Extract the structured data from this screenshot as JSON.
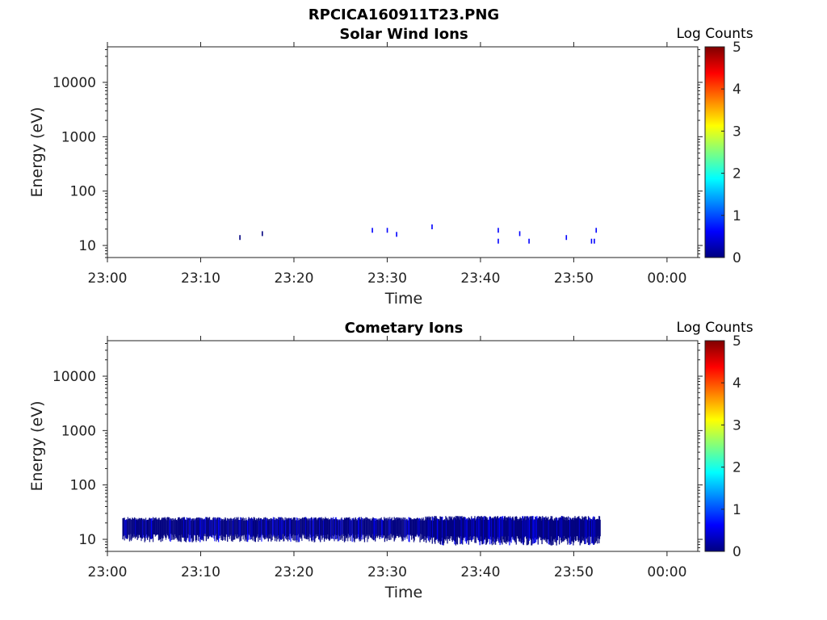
{
  "figure": {
    "title": "RPCICA160911T23.PNG"
  },
  "chart_data": [
    {
      "type": "heatmap",
      "title": "Solar Wind Ions",
      "xlabel": "Time",
      "ylabel": "Energy (eV)",
      "x_ticks": [
        "23:00",
        "23:10",
        "23:20",
        "23:30",
        "23:40",
        "23:50",
        "00:00"
      ],
      "x_range_minutes": [
        0,
        63.3
      ],
      "y_ticks": [
        "10",
        "100",
        "1000",
        "10000"
      ],
      "y_scale": "log",
      "y_range": [
        6,
        45000
      ],
      "colorbar": {
        "label": "Log Counts",
        "ticks": [
          "0",
          "1",
          "2",
          "3",
          "4",
          "5"
        ],
        "range": [
          0,
          5
        ]
      },
      "events": [
        {
          "t_min": 14.2,
          "energy_ev": 14,
          "log_counts": 0.3
        },
        {
          "t_min": 16.6,
          "energy_ev": 16.5,
          "log_counts": 0.3
        },
        {
          "t_min": 28.4,
          "energy_ev": 19,
          "log_counts": 0.5
        },
        {
          "t_min": 30.0,
          "energy_ev": 19,
          "log_counts": 0.4
        },
        {
          "t_min": 31.0,
          "energy_ev": 16,
          "log_counts": 0.4
        },
        {
          "t_min": 34.8,
          "energy_ev": 22,
          "log_counts": 0.5
        },
        {
          "t_min": 41.9,
          "energy_ev": 19,
          "log_counts": 0.4
        },
        {
          "t_min": 41.9,
          "energy_ev": 12,
          "log_counts": 0.4
        },
        {
          "t_min": 44.2,
          "energy_ev": 16.5,
          "log_counts": 0.4
        },
        {
          "t_min": 45.2,
          "energy_ev": 12,
          "log_counts": 0.4
        },
        {
          "t_min": 49.2,
          "energy_ev": 14,
          "log_counts": 0.4
        },
        {
          "t_min": 51.9,
          "energy_ev": 12,
          "log_counts": 0.4
        },
        {
          "t_min": 52.2,
          "energy_ev": 12,
          "log_counts": 0.4
        },
        {
          "t_min": 52.4,
          "energy_ev": 19,
          "log_counts": 0.4
        }
      ]
    },
    {
      "type": "heatmap",
      "title": "Cometary Ions",
      "xlabel": "Time",
      "ylabel": "Energy (eV)",
      "x_ticks": [
        "23:00",
        "23:10",
        "23:20",
        "23:30",
        "23:40",
        "23:50",
        "00:00"
      ],
      "x_range_minutes": [
        0,
        63.3
      ],
      "y_ticks": [
        "10",
        "100",
        "1000",
        "10000"
      ],
      "y_scale": "log",
      "y_range": [
        6,
        45000
      ],
      "colorbar": {
        "label": "Log Counts",
        "ticks": [
          "0",
          "1",
          "2",
          "3",
          "4",
          "5"
        ],
        "range": [
          0,
          5
        ]
      },
      "band": {
        "t_start_min": 1.6,
        "t_end_min": 52.8,
        "energy_low_ev": 11,
        "energy_high_ev": 25,
        "log_counts": 0.3,
        "dense_after_min": 34.0
      }
    }
  ],
  "colors": {
    "cmap": [
      "#00007f",
      "#0000ff",
      "#007fff",
      "#00ffff",
      "#7fff7f",
      "#ffff00",
      "#ff7f00",
      "#ff0000",
      "#7f0000"
    ],
    "axis": "#222222"
  }
}
